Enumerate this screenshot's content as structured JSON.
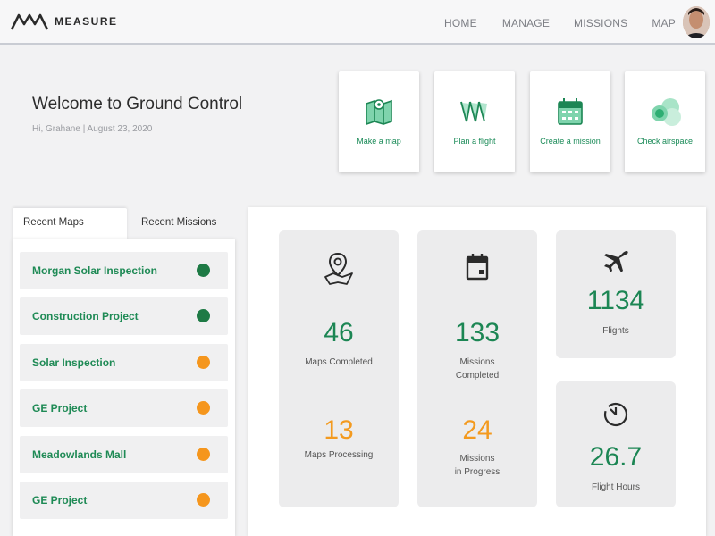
{
  "brand": {
    "name": "MEASURE"
  },
  "nav": {
    "home": "HOME",
    "manage": "MANAGE",
    "missions": "MISSIONS",
    "map": "MAP"
  },
  "welcome": {
    "title": "Welcome to Ground Control",
    "subtitle": "Hi, Grahane | August 23, 2020"
  },
  "actions": [
    {
      "label": "Make a map",
      "icon": "map-icon"
    },
    {
      "label": "Plan a flight",
      "icon": "flight-path-icon"
    },
    {
      "label": "Create a mission",
      "icon": "calendar-icon"
    },
    {
      "label": "Check airspace",
      "icon": "airspace-icon"
    }
  ],
  "tabs": {
    "recent_maps": "Recent Maps",
    "recent_missions": "Recent Missions"
  },
  "recent_maps": [
    {
      "name": "Morgan Solar Inspection",
      "status": "complete"
    },
    {
      "name": "Construction Project",
      "status": "complete"
    },
    {
      "name": "Solar Inspection",
      "status": "processing"
    },
    {
      "name": "GE Project",
      "status": "processing"
    },
    {
      "name": "Meadowlands Mall",
      "status": "processing"
    },
    {
      "name": "GE Project",
      "status": "processing"
    }
  ],
  "status_colors": {
    "complete": "#1e7a45",
    "processing": "#f5961d"
  },
  "stats": {
    "maps": {
      "completed_value": "46",
      "completed_label": "Maps Completed",
      "processing_value": "13",
      "processing_label": "Maps Processing"
    },
    "missions": {
      "completed_value": "133",
      "completed_label_1": "Missions",
      "completed_label_2": "Completed",
      "progress_value": "24",
      "progress_label_1": "Missions",
      "progress_label_2": "in Progress"
    },
    "flights": {
      "value": "1134",
      "label": "Flights"
    },
    "flight_hours": {
      "value": "26.7",
      "label": "Flight Hours"
    }
  },
  "colors": {
    "brand_green": "#1c8654",
    "accent_orange": "#f39a1f"
  }
}
